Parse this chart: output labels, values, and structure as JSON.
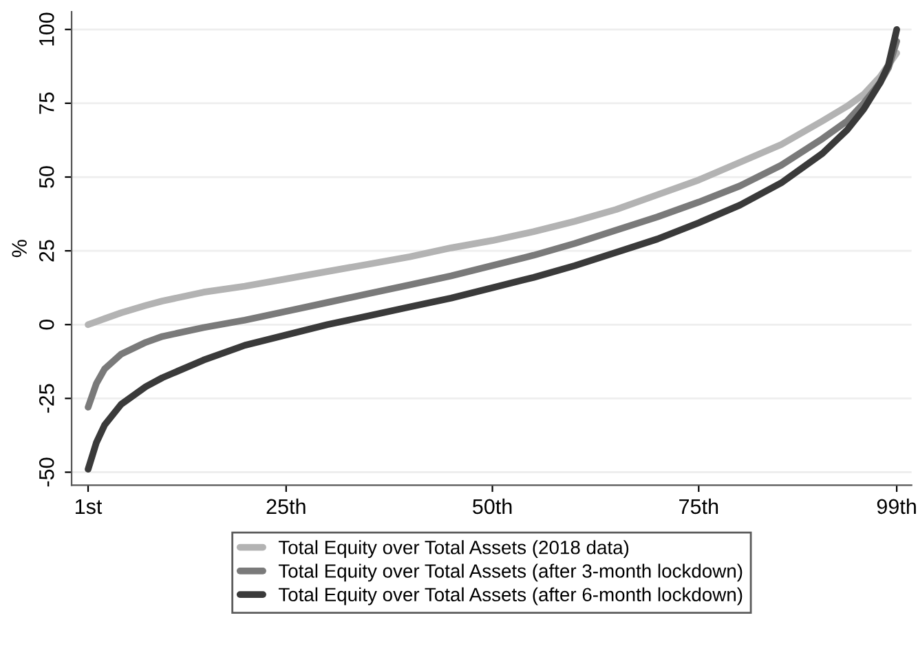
{
  "chart_data": {
    "type": "line",
    "ylabel": "%",
    "x": [
      1,
      2,
      3,
      5,
      8,
      10,
      15,
      20,
      25,
      30,
      35,
      40,
      45,
      50,
      55,
      60,
      65,
      70,
      75,
      80,
      85,
      90,
      93,
      95,
      97,
      98,
      99
    ],
    "series": [
      {
        "name": "Total Equity over Total Assets (2018 data)",
        "color": "#b3b3b3",
        "values": [
          0,
          1,
          2,
          4,
          6.5,
          8,
          11,
          13,
          15.5,
          18,
          20.5,
          23,
          26,
          28.5,
          31.5,
          35,
          39,
          44,
          49,
          55,
          61,
          69,
          74,
          78,
          84,
          88,
          92
        ]
      },
      {
        "name": "Total Equity over Total Assets (after 3-month lockdown)",
        "color": "#7a7a7a",
        "values": [
          -28,
          -20,
          -15,
          -10,
          -6,
          -4,
          -1,
          1.5,
          4.5,
          7.5,
          10.5,
          13.5,
          16.5,
          20,
          23.5,
          27.5,
          32,
          36.5,
          41.5,
          47,
          54,
          63,
          69,
          75,
          82,
          87,
          96
        ]
      },
      {
        "name": "Total Equity over Total Assets (after 6-month lockdown)",
        "color": "#3a3a3a",
        "values": [
          -49,
          -40,
          -34,
          -27,
          -21,
          -18,
          -12,
          -7,
          -3.5,
          0,
          3,
          6,
          9,
          12.5,
          16,
          20,
          24.5,
          29,
          34.5,
          40.5,
          48,
          58,
          66,
          73,
          82,
          88,
          100
        ]
      }
    ],
    "xlim": [
      -1,
      100.8
    ],
    "ylim": [
      -54.4,
      106
    ],
    "xticks": [
      {
        "value": 1,
        "label": "1st"
      },
      {
        "value": 25,
        "label": "25th"
      },
      {
        "value": 50,
        "label": "50th"
      },
      {
        "value": 75,
        "label": "75th"
      },
      {
        "value": 99,
        "label": "99th"
      }
    ],
    "yticks": [
      {
        "value": -50,
        "label": "-50"
      },
      {
        "value": -25,
        "label": "-25"
      },
      0,
      25,
      50,
      75,
      100
    ],
    "grid": "y",
    "legend": "bottom",
    "line_style": "solid",
    "marker": "none"
  }
}
